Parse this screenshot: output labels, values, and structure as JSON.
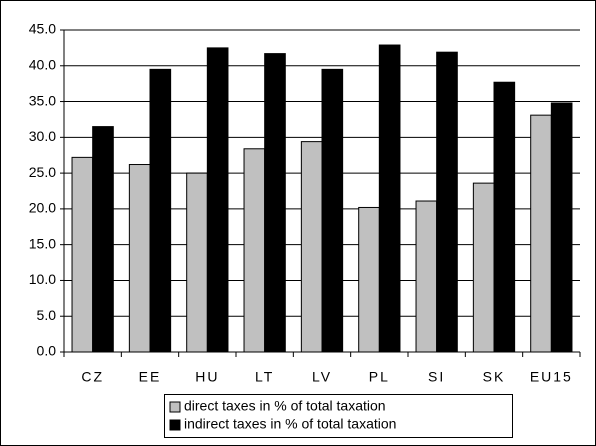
{
  "chart_data": {
    "type": "bar",
    "categories": [
      "CZ",
      "EE",
      "HU",
      "LT",
      "LV",
      "PL",
      "SI",
      "SK",
      "EU15"
    ],
    "series": [
      {
        "name": "direct taxes in % of total taxation",
        "color": "#c0c0c0",
        "values": [
          27.2,
          26.2,
          25.0,
          28.4,
          29.4,
          20.2,
          21.1,
          23.6,
          33.1
        ]
      },
      {
        "name": "indirect taxes in % of total taxation",
        "color": "#000000",
        "values": [
          31.5,
          39.5,
          42.5,
          41.7,
          39.5,
          42.9,
          41.9,
          37.7,
          34.8
        ]
      }
    ],
    "ylim": [
      0,
      45
    ],
    "yticks": [
      {
        "value": 0,
        "label": "0.0"
      },
      {
        "value": 5,
        "label": "5.0"
      },
      {
        "value": 10,
        "label": "10.0"
      },
      {
        "value": 15,
        "label": "15.0"
      },
      {
        "value": 20,
        "label": "20.0"
      },
      {
        "value": 25,
        "label": "25.0"
      },
      {
        "value": 30,
        "label": "30.0"
      },
      {
        "value": 35,
        "label": "35.0"
      },
      {
        "value": 40,
        "label": "40.0"
      },
      {
        "value": 45,
        "label": "45.0"
      }
    ],
    "grid": true
  }
}
